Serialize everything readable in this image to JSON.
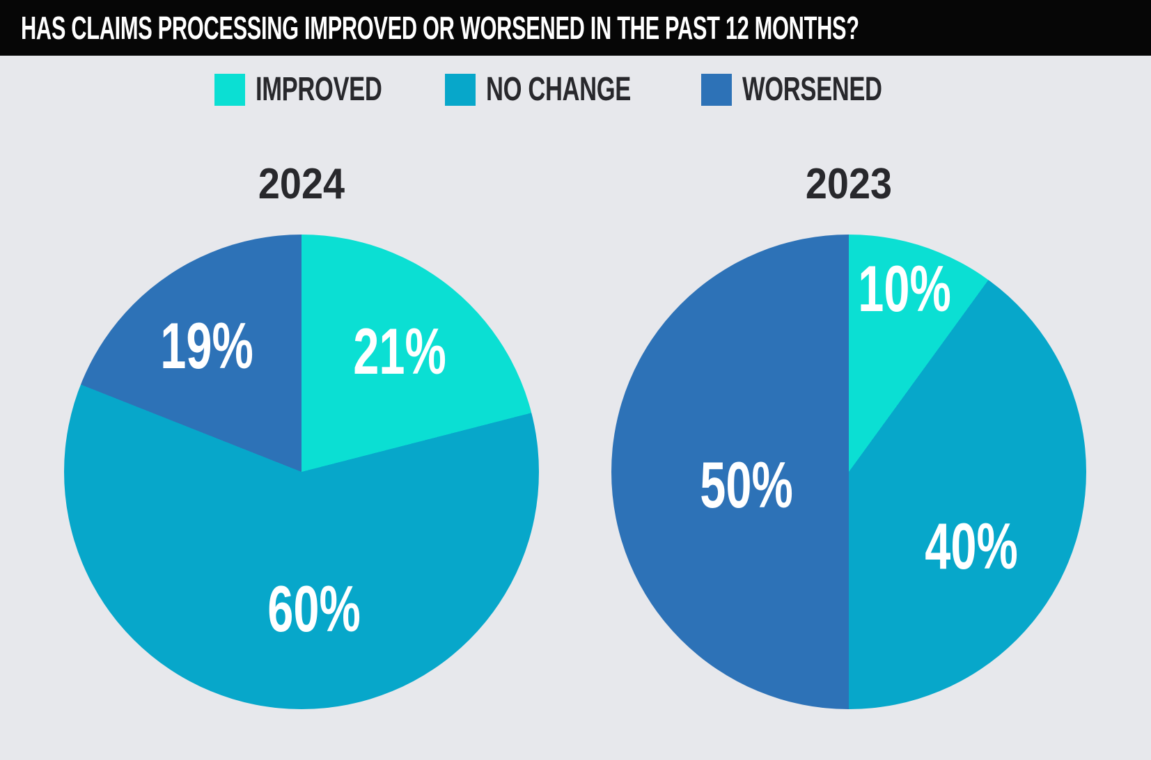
{
  "header": {
    "title": "HAS CLAIMS PROCESSING IMPROVED OR WORSENED IN THE PAST 12 MONTHS?"
  },
  "colors": {
    "improved": "#0BDFD3",
    "no_change": "#07A7CA",
    "worsened": "#2D72B7",
    "background": "#E7E8EC",
    "header_bg": "#060606",
    "header_text": "#FFFFFF",
    "slice_label_text": "#FFFFFF",
    "title_text": "#28282C"
  },
  "legend": {
    "position": "top",
    "items": [
      {
        "label": "IMPROVED",
        "color": "#0BDFD3"
      },
      {
        "label": "NO CHANGE",
        "color": "#07A7CA"
      },
      {
        "label": "WORSENED",
        "color": "#2D72B7"
      }
    ]
  },
  "chart_data": [
    {
      "type": "pie",
      "title": "2024",
      "start_angle_deg": 0,
      "direction": "clockwise",
      "slices": [
        {
          "label": "IMPROVED",
          "value": 21,
          "display": "21%",
          "color": "#0BDFD3"
        },
        {
          "label": "NO CHANGE",
          "value": 60,
          "display": "60%",
          "color": "#07A7CA"
        },
        {
          "label": "WORSENED",
          "value": 19,
          "display": "19%",
          "color": "#2D72B7"
        }
      ]
    },
    {
      "type": "pie",
      "title": "2023",
      "start_angle_deg": 0,
      "direction": "clockwise",
      "slices": [
        {
          "label": "IMPROVED",
          "value": 10,
          "display": "10%",
          "color": "#0BDFD3"
        },
        {
          "label": "NO CHANGE",
          "value": 40,
          "display": "40%",
          "color": "#07A7CA"
        },
        {
          "label": "WORSENED",
          "value": 50,
          "display": "50%",
          "color": "#2D72B7"
        }
      ]
    }
  ]
}
